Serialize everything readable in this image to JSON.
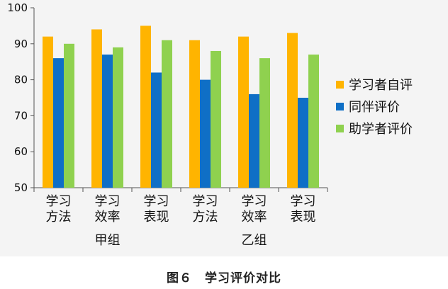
{
  "caption": "图６　学习评价对比",
  "chart_data": {
    "type": "bar",
    "categories": [
      "学习方法",
      "学习效率",
      "学习表现",
      "学习方法",
      "学习效率",
      "学习表现"
    ],
    "category_label_lines": [
      [
        "学习",
        "方法"
      ],
      [
        "学习",
        "效率"
      ],
      [
        "学习",
        "表现"
      ],
      [
        "学习",
        "方法"
      ],
      [
        "学习",
        "效率"
      ],
      [
        "学习",
        "表现"
      ]
    ],
    "groups": [
      {
        "label": "甲组",
        "categories": [
          0,
          1,
          2
        ]
      },
      {
        "label": "乙组",
        "categories": [
          3,
          4,
          5
        ]
      }
    ],
    "series": [
      {
        "name": "学习者自评",
        "color": "#ffb400",
        "values": [
          92,
          94,
          95,
          91,
          92,
          93
        ]
      },
      {
        "name": "同伴评价",
        "color": "#0f6fc6",
        "values": [
          86,
          87,
          82,
          80,
          76,
          75
        ]
      },
      {
        "name": "助学者评价",
        "color": "#8fd14f",
        "values": [
          90,
          89,
          91,
          88,
          86,
          87
        ]
      }
    ],
    "ylim": [
      50,
      100
    ],
    "yticks": [
      50,
      60,
      70,
      80,
      90,
      100
    ],
    "grid": false,
    "legend": "right"
  }
}
